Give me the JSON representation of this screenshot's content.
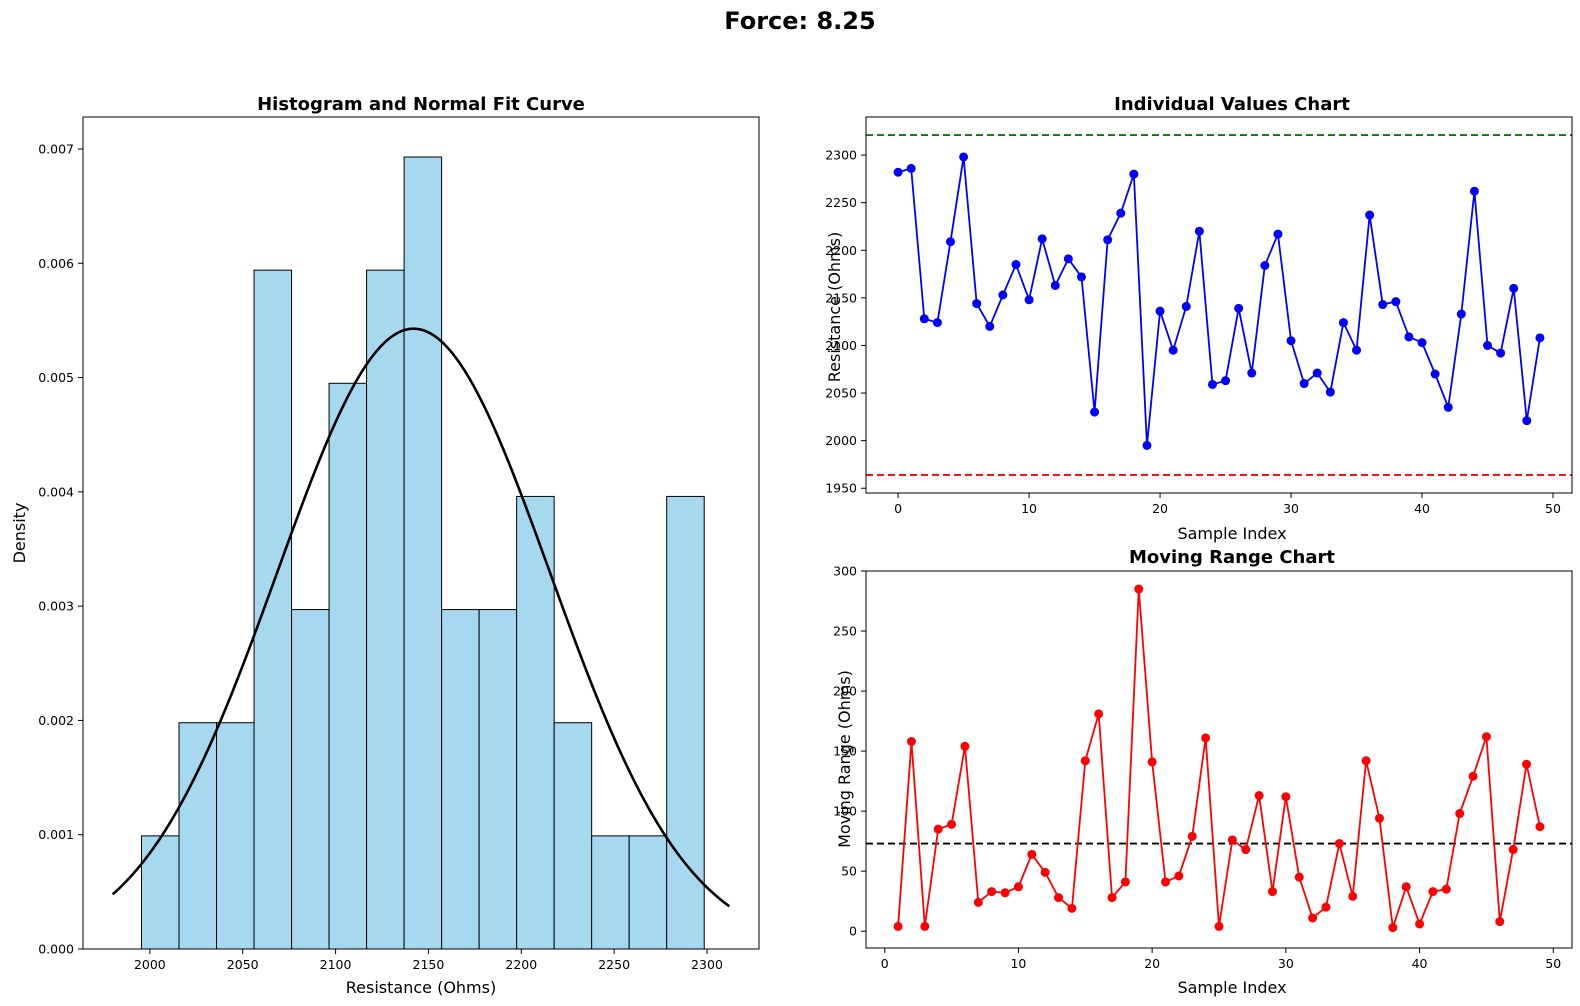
{
  "figure": {
    "suptitle": "Force: 8.25"
  },
  "chart_data": [
    {
      "type": "bar",
      "subtype": "histogram",
      "title": "Histogram and Normal Fit Curve",
      "xlabel": "Resistance (Ohms)",
      "ylabel": "Density",
      "xlim": [
        1964,
        2328
      ],
      "ylim": [
        0,
        0.00728
      ],
      "xticks": [
        2000,
        2050,
        2100,
        2150,
        2200,
        2250,
        2300
      ],
      "yticks": [
        0.0,
        0.001,
        0.002,
        0.003,
        0.004,
        0.005,
        0.006,
        0.007
      ],
      "ytick_labels": [
        "0.000",
        "0.001",
        "0.002",
        "0.003",
        "0.004",
        "0.005",
        "0.006",
        "0.007"
      ],
      "bin_edges": [
        1995.5,
        2015.7,
        2035.9,
        2056.1,
        2076.3,
        2096.5,
        2116.7,
        2136.9,
        2157.1,
        2177.3,
        2197.5,
        2217.7,
        2237.9,
        2258.1,
        2278.3,
        2298.5
      ],
      "densities": [
        0.00099,
        0.00198,
        0.00198,
        0.00594,
        0.00297,
        0.00495,
        0.00594,
        0.00693,
        0.00297,
        0.00297,
        0.00396,
        0.00198,
        0.00099,
        0.00099,
        0.00396
      ],
      "bar_color": "#a6d9f0",
      "fit_curve": {
        "name": "Normal Fit",
        "mean": 2142,
        "std": 73.5,
        "x_range": [
          1980,
          2312
        ],
        "color": "#000000"
      },
      "grid": false
    },
    {
      "type": "line",
      "title": "Individual Values Chart",
      "xlabel": "Sample Index",
      "ylabel": "Resistance (Ohms)",
      "xlim": [
        -2.45,
        51.45
      ],
      "ylim": [
        1945,
        2340
      ],
      "xticks": [
        0,
        10,
        20,
        30,
        40,
        50
      ],
      "yticks": [
        1950,
        2000,
        2050,
        2100,
        2150,
        2200,
        2250,
        2300
      ],
      "x_start": 0,
      "values": [
        2282,
        2286,
        2128,
        2124,
        2209,
        2298,
        2144,
        2120,
        2153,
        2185,
        2148,
        2212,
        2163,
        2191,
        2172,
        2030,
        2211,
        2239,
        2280,
        1995,
        2136,
        2095,
        2141,
        2220,
        2059,
        2063,
        2139,
        2071,
        2184,
        2217,
        2105,
        2060,
        2071,
        2051,
        2124,
        2095,
        2237,
        2143,
        2146,
        2109,
        2103,
        2070,
        2035,
        2133,
        2262,
        2100,
        2092,
        2160,
        2021,
        2108
      ],
      "line_color": "#0000ff",
      "reference_lines": [
        {
          "y": 2321,
          "color": "#008000",
          "style": "dashed"
        },
        {
          "y": 1964,
          "color": "#ff0000",
          "style": "dashed"
        }
      ],
      "grid": false
    },
    {
      "type": "line",
      "title": "Moving Range Chart",
      "xlabel": "Sample Index",
      "ylabel": "Moving Range (Ohms)",
      "xlim": [
        -1.4,
        51.4
      ],
      "ylim": [
        -14,
        300
      ],
      "xticks": [
        0,
        10,
        20,
        30,
        40,
        50
      ],
      "yticks": [
        0,
        50,
        100,
        150,
        200,
        250,
        300
      ],
      "x_start": 1,
      "values": [
        4,
        158,
        4,
        85,
        89,
        154,
        24,
        33,
        32,
        37,
        64,
        49,
        28,
        19,
        142,
        181,
        28,
        41,
        285,
        141,
        41,
        46,
        79,
        161,
        4,
        76,
        68,
        113,
        33,
        112,
        45,
        11,
        20,
        73,
        29,
        142,
        94,
        3,
        37,
        6,
        33,
        35,
        98,
        129,
        162,
        8,
        68,
        139,
        87
      ],
      "line_color": "#ff0000",
      "reference_lines": [
        {
          "y": 73,
          "color": "#000000",
          "style": "dashed"
        }
      ],
      "grid": false
    }
  ]
}
